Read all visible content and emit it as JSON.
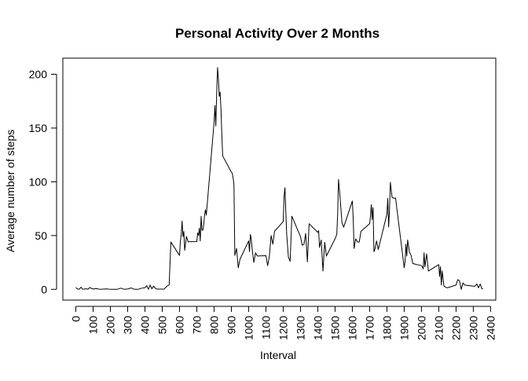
{
  "chart_data": {
    "type": "line",
    "title": "Personal Activity Over 2 Months",
    "xlabel": "Interval",
    "ylabel": "Average number of steps",
    "xlim": [
      -75,
      2430
    ],
    "ylim": [
      -10,
      215
    ],
    "xticks": [
      0,
      100,
      200,
      300,
      400,
      500,
      600,
      700,
      800,
      900,
      1000,
      1100,
      1200,
      1300,
      1400,
      1500,
      1600,
      1700,
      1800,
      1900,
      2000,
      2100,
      2200,
      2300,
      2400
    ],
    "yticks": [
      0,
      50,
      100,
      150,
      200
    ],
    "grid": false,
    "line_color": "#000000",
    "series": [
      {
        "x": [
          0,
          10,
          20,
          30,
          40,
          50,
          60,
          70,
          80,
          100,
          120,
          140,
          160,
          180,
          200,
          220,
          240,
          260,
          280,
          300,
          320,
          340,
          360,
          380,
          400,
          410,
          420,
          430,
          440,
          450,
          460,
          470,
          500,
          510,
          520,
          530,
          540,
          550,
          600,
          605,
          610,
          615,
          620,
          625,
          630,
          640,
          650,
          700,
          705,
          710,
          715,
          720,
          725,
          730,
          735,
          740,
          745,
          750,
          755,
          800,
          805,
          810,
          815,
          820,
          825,
          830,
          835,
          840,
          845,
          850,
          900,
          905,
          910,
          915,
          920,
          930,
          940,
          945,
          950,
          1000,
          1005,
          1010,
          1015,
          1020,
          1030,
          1040,
          1050,
          1100,
          1110,
          1120,
          1130,
          1140,
          1150,
          1200,
          1205,
          1210,
          1215,
          1220,
          1230,
          1240,
          1250,
          1300,
          1310,
          1320,
          1330,
          1340,
          1345,
          1350,
          1400,
          1405,
          1410,
          1420,
          1430,
          1440,
          1450,
          1500,
          1510,
          1515,
          1520,
          1530,
          1540,
          1550,
          1600,
          1605,
          1610,
          1615,
          1620,
          1630,
          1640,
          1650,
          1700,
          1705,
          1710,
          1715,
          1720,
          1725,
          1730,
          1740,
          1750,
          1800,
          1805,
          1810,
          1815,
          1820,
          1830,
          1840,
          1850,
          1900,
          1905,
          1910,
          1915,
          1920,
          1930,
          1940,
          1950,
          2000,
          2005,
          2010,
          2015,
          2020,
          2030,
          2040,
          2050,
          2100,
          2105,
          2110,
          2115,
          2120,
          2130,
          2140,
          2150,
          2200,
          2210,
          2220,
          2230,
          2240,
          2250,
          2300,
          2310,
          2320,
          2330,
          2340,
          2350,
          2355
        ],
        "y": [
          1.7,
          0.3,
          0.1,
          2.0,
          0.0,
          0.3,
          0.5,
          0.1,
          1.6,
          0.3,
          0.7,
          0.0,
          0.2,
          0.4,
          0.0,
          0.0,
          0.0,
          1.1,
          0.0,
          0.3,
          1.3,
          0.0,
          0.0,
          1.0,
          1.5,
          3.5,
          0.0,
          4.0,
          0.5,
          3.0,
          1.0,
          0.2,
          0.2,
          0.1,
          1.8,
          3.3,
          4.0,
          44.0,
          31.5,
          44.7,
          51.0,
          63.5,
          49.0,
          53.8,
          36.3,
          49.2,
          44.2,
          44.4,
          52.5,
          50.0,
          57.0,
          45.0,
          68.0,
          55.0,
          55.0,
          60.2,
          69.0,
          74.0,
          69.0,
          155.4,
          171.0,
          152.0,
          181.6,
          206.2,
          195.9,
          179.6,
          183.4,
          167.0,
          143.5,
          124.0,
          109.0,
          108.1,
          103.7,
          97.6,
          31.5,
          38.0,
          20.0,
          24.0,
          28.0,
          45.0,
          35.0,
          51.0,
          47.0,
          38.0,
          25.0,
          34.0,
          31.0,
          31.3,
          22.0,
          31.0,
          50.0,
          42.0,
          54.0,
          63.0,
          86.6,
          94.5,
          73.0,
          51.6,
          30.0,
          26.0,
          68.0,
          49.0,
          41.0,
          41.8,
          52.0,
          25.5,
          44.0,
          61.0,
          53.0,
          54.5,
          39.0,
          46.0,
          17.0,
          43.7,
          31.0,
          47.0,
          51.0,
          70.0,
          102.1,
          83.5,
          62.0,
          57.8,
          82.1,
          66.0,
          38.0,
          42.7,
          47.0,
          44.0,
          44.0,
          54.0,
          61.0,
          68.0,
          78.7,
          65.0,
          76.0,
          35.0,
          37.0,
          45.0,
          37.0,
          70.0,
          84.5,
          58.0,
          74.0,
          99.5,
          85.5,
          84.7,
          85.0,
          20.1,
          25.7,
          42.0,
          31.0,
          46.0,
          35.0,
          31.4,
          24.0,
          22.0,
          21.0,
          19.0,
          34.0,
          21.0,
          33.0,
          17.0,
          18.0,
          23.0,
          12.0,
          21.0,
          4.0,
          17.0,
          3.0,
          2.0,
          1.4,
          4.0,
          9.0,
          8.0,
          0.0,
          6.0,
          4.0,
          3.0,
          3.0,
          5.0,
          1.4,
          4.9,
          0.4,
          1.1
        ]
      }
    ]
  }
}
